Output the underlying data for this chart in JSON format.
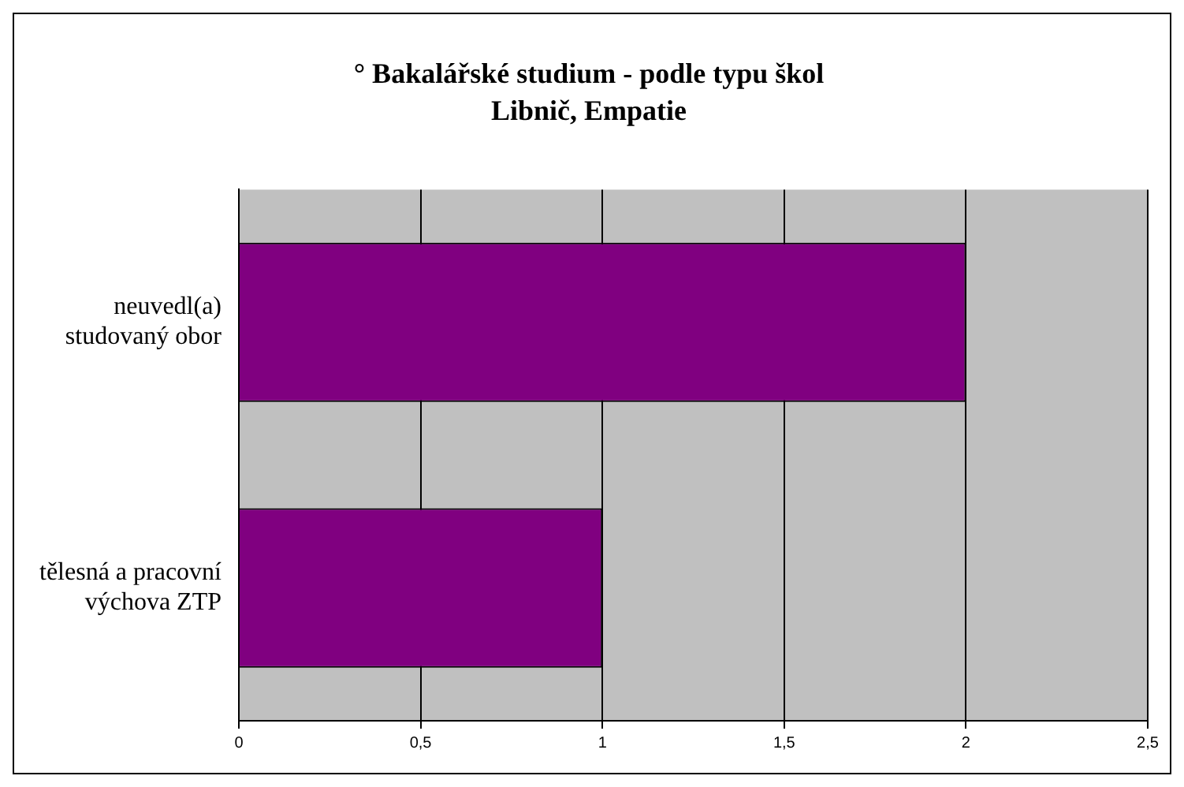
{
  "chart_data": {
    "type": "bar",
    "orientation": "horizontal",
    "title": "° Bakalářské studium - podle typu škol",
    "subtitle": "Libnič, Empatie",
    "categories": [
      "neuvedl(a) studovaný obor",
      "tělesná a pracovní výchova ZTP"
    ],
    "values": [
      2,
      1
    ],
    "color": "#800080",
    "xlim": [
      0,
      2.5
    ],
    "xticks": [
      0,
      {
        "value": 0.5,
        "label": "0,5"
      },
      1,
      {
        "value": 1.5,
        "label": "1,5"
      },
      2,
      {
        "value": 2.5,
        "label": "2,5"
      }
    ],
    "grid": "x",
    "legend": false
  }
}
